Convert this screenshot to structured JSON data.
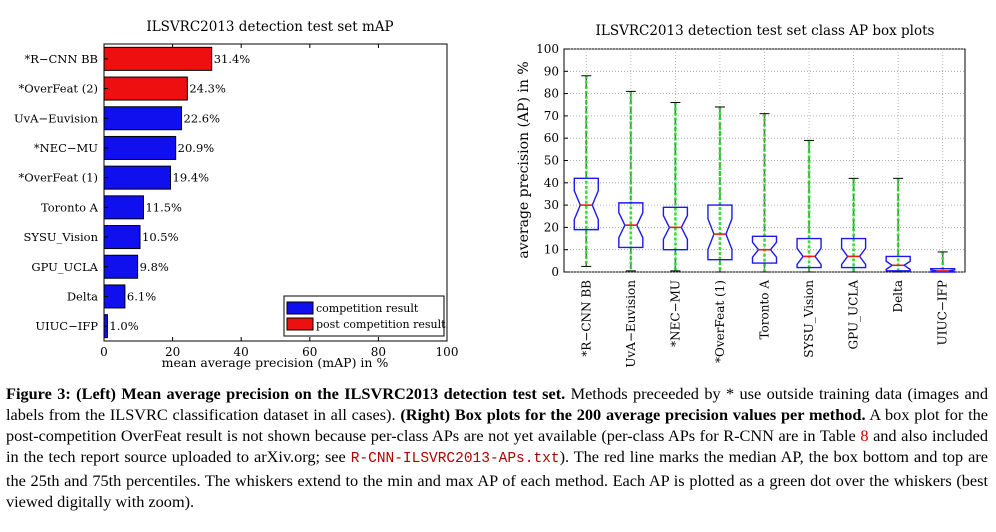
{
  "chart_data": [
    {
      "type": "bar",
      "orientation": "horizontal",
      "title": "ILSVRC2013 detection test set mAP",
      "xlabel": "mean average precision (mAP) in %",
      "ylabel": "",
      "xlim": [
        0,
        100
      ],
      "x_ticks": [
        "0",
        "20",
        "40",
        "60",
        "80",
        "100"
      ],
      "categories": [
        "*R−CNN BB",
        "*OverFeat (2)",
        "UvA−Euvision",
        "*NEC−MU",
        "*OverFeat (1)",
        "Toronto A",
        "SYSU_Vision",
        "GPU_UCLA",
        "Delta",
        "UIUC−IFP"
      ],
      "values": [
        31.4,
        24.3,
        22.6,
        20.9,
        19.4,
        11.5,
        10.5,
        9.8,
        6.1,
        1.0
      ],
      "value_labels": [
        "31.4%",
        "24.3%",
        "22.6%",
        "20.9%",
        "19.4%",
        "11.5%",
        "10.5%",
        "9.8%",
        "6.1%",
        "1.0%"
      ],
      "bar_groups": [
        "post",
        "post",
        "comp",
        "comp",
        "comp",
        "comp",
        "comp",
        "comp",
        "comp",
        "comp"
      ],
      "legend": [
        {
          "key": "comp",
          "label": "competition result",
          "color": "#1010ee"
        },
        {
          "key": "post",
          "label": "post competition result",
          "color": "#ee1010"
        }
      ],
      "legend_position": "bottom-right"
    },
    {
      "type": "box",
      "title": "ILSVRC2013 detection test set class AP box plots",
      "xlabel": "",
      "ylabel": "average precision (AP) in %",
      "ylim": [
        0,
        100
      ],
      "y_ticks": [
        "0",
        "10",
        "20",
        "30",
        "40",
        "50",
        "60",
        "70",
        "80",
        "90",
        "100"
      ],
      "grid": true,
      "categories": [
        "*R−CNN BB",
        "UvA−Euvision",
        "*NEC−MU",
        "*OverFeat (1)",
        "Toronto A",
        "SYSU_Vision",
        "GPU_UCLA",
        "Delta",
        "UIUC−IFP"
      ],
      "boxes": [
        {
          "min": 2.5,
          "q1": 19,
          "median": 30,
          "q3": 42,
          "max": 88
        },
        {
          "min": 0.5,
          "q1": 11,
          "median": 21,
          "q3": 31,
          "max": 81
        },
        {
          "min": 0.5,
          "q1": 10,
          "median": 20,
          "q3": 29,
          "max": 76
        },
        {
          "min": 0,
          "q1": 5.5,
          "median": 17,
          "q3": 30,
          "max": 74
        },
        {
          "min": 0,
          "q1": 4,
          "median": 10,
          "q3": 16,
          "max": 71
        },
        {
          "min": 0,
          "q1": 2,
          "median": 7,
          "q3": 15,
          "max": 59
        },
        {
          "min": 0,
          "q1": 2,
          "median": 7,
          "q3": 15,
          "max": 42
        },
        {
          "min": 0,
          "q1": 0.5,
          "median": 3,
          "q3": 7,
          "max": 42
        },
        {
          "min": 0,
          "q1": 0,
          "median": 0.5,
          "q3": 1.5,
          "max": 9
        }
      ],
      "colors": {
        "box": "#1a1aee",
        "median": "#ee1a1a",
        "whisker": "#555555",
        "points": "#22dd22"
      }
    }
  ],
  "caption": {
    "figure_label": "Figure 3:",
    "left_bold": "(Left) Mean average precision on the ILSVRC2013 detection test set.",
    "left_text": "Methods preceeded by * use outside training data (images and labels from the ILSVRC classification dataset in all cases).",
    "right_bold": "(Right) Box plots for the 200 average precision values per method.",
    "right_text_1": "A box plot for the post-competition OverFeat result is not shown because per-class APs are not yet available (per-class APs for R-CNN are in Table",
    "table_ref": "8",
    "right_text_2": "and also included in the tech report source uploaded to arXiv.org; see",
    "file_ref": "R-CNN-ILSVRC2013-APs.txt",
    "right_text_3": "). The red line marks the median AP, the box bottom and top are the 25th and 75th percentiles. The whiskers extend to the min and max AP of each method. Each AP is plotted as a green dot over the whiskers (best viewed digitally with zoom)."
  }
}
